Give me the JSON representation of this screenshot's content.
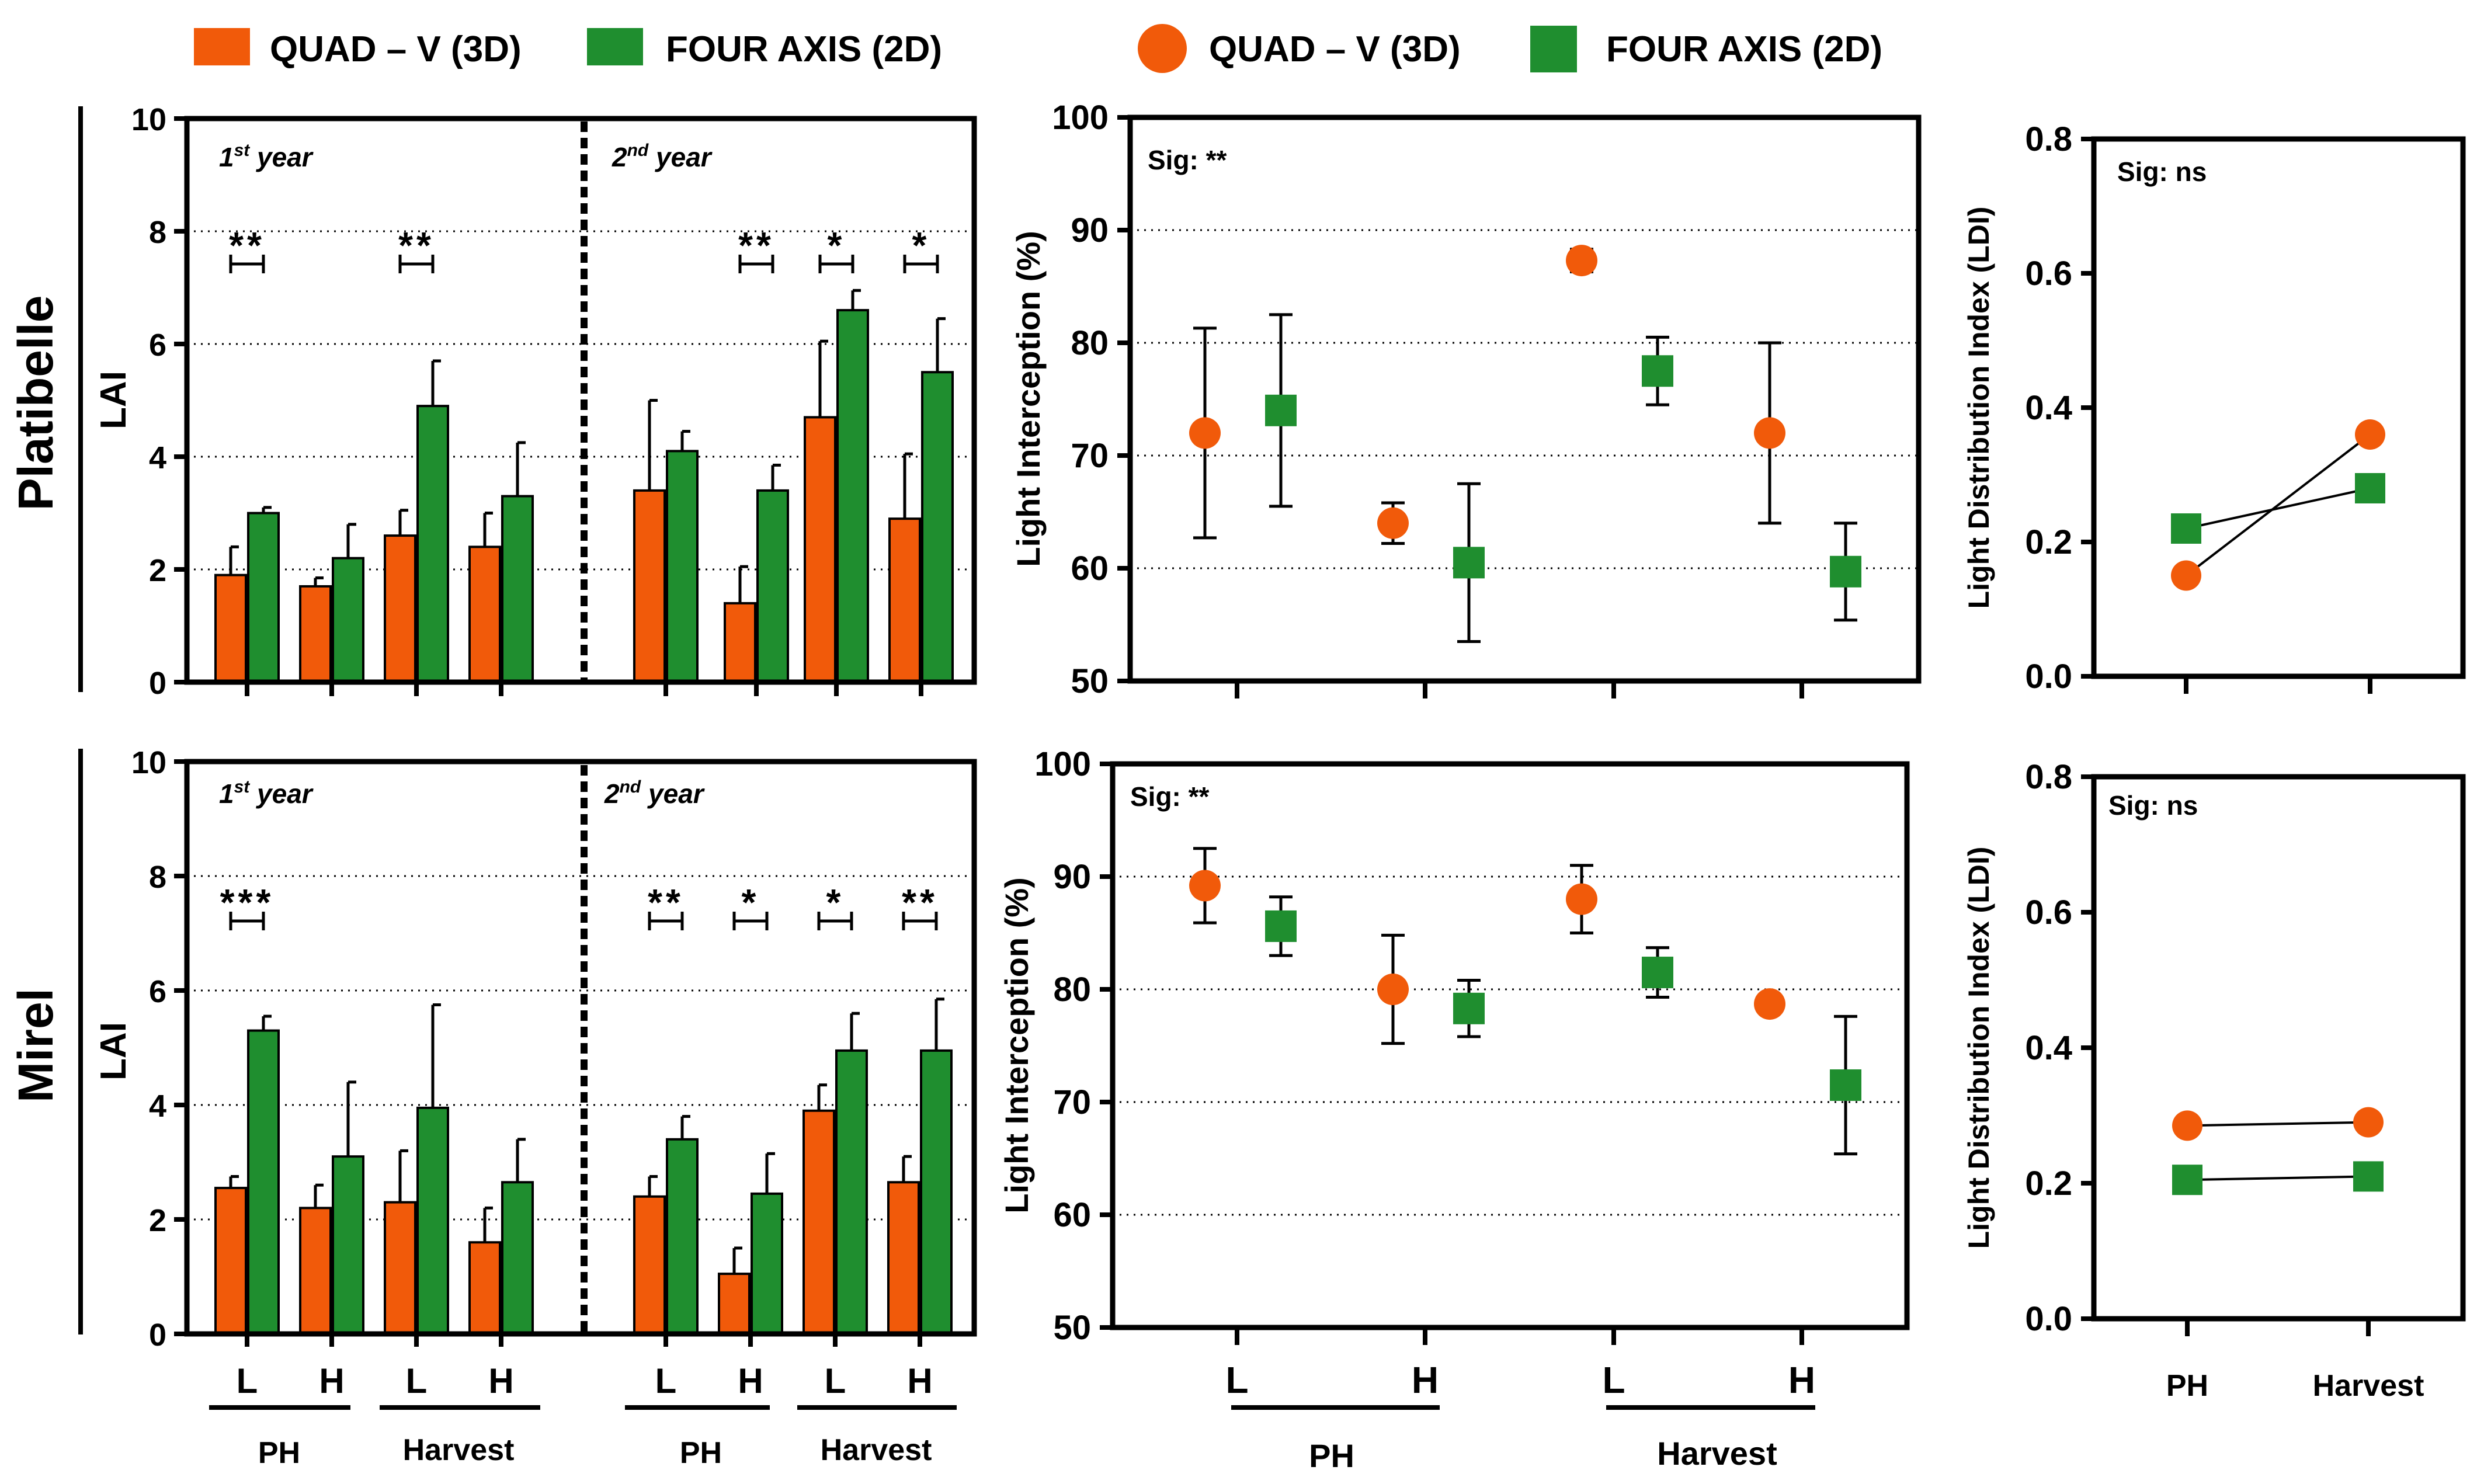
{
  "colors": {
    "quad": "#f15a0a",
    "four": "#1f8e2f"
  },
  "legend": {
    "bars": [
      "QUAD – V (3D)",
      "FOUR AXIS (2D)"
    ],
    "points": [
      "QUAD – V (3D)",
      "FOUR AXIS (2D)"
    ]
  },
  "rows": [
    {
      "label": "Platibelle",
      "year1_label": "1st year",
      "year2_label": "2nd year",
      "lai_ylabel": "LAI",
      "li_sig": "Sig: **",
      "ldi_sig": "Sig: ns"
    },
    {
      "label": "Mirel",
      "year1_label": "1st year",
      "year2_label": "2nd year",
      "lai_ylabel": "LAI",
      "li_sig": "Sig: **",
      "ldi_sig": "Sig: ns"
    }
  ],
  "bottom_labels": {
    "lai_groups": [
      "PH",
      "Harvest",
      "PH",
      "Harvest"
    ],
    "lai_ticks": [
      "L",
      "H",
      "L",
      "H",
      "L",
      "H",
      "L",
      "H"
    ],
    "li_groups": [
      "PH",
      "Harvest"
    ],
    "li_ticks": [
      "L",
      "H",
      "L",
      "H"
    ],
    "ldi_ticks": [
      "PH",
      "Harvest"
    ]
  },
  "chart_data": [
    {
      "id": "lai-platibelle",
      "type": "bar",
      "ylabel": "LAI",
      "ylim": [
        0,
        10
      ],
      "yticks": [
        0,
        2,
        4,
        6,
        8,
        10
      ],
      "grid": true,
      "categories": [
        "1st year PH L",
        "1st year PH H",
        "1st year Harvest L",
        "1st year Harvest H",
        "2nd year PH L",
        "2nd year PH H",
        "2nd year Harvest L",
        "2nd year Harvest H"
      ],
      "series": [
        {
          "name": "QUAD – V (3D)",
          "values": [
            1.9,
            1.7,
            2.6,
            2.4,
            3.4,
            1.4,
            4.7,
            2.9
          ],
          "errors": [
            0.5,
            0.15,
            0.45,
            0.6,
            1.6,
            0.65,
            1.35,
            1.15
          ]
        },
        {
          "name": "FOUR AXIS (2D)",
          "values": [
            3.0,
            2.2,
            4.9,
            3.3,
            4.1,
            3.4,
            6.6,
            5.5
          ],
          "errors": [
            0.1,
            0.6,
            0.8,
            0.95,
            0.35,
            0.45,
            0.35,
            0.95
          ]
        }
      ],
      "significance": [
        {
          "category": 0,
          "label": "**"
        },
        {
          "category": 2,
          "label": "**"
        },
        {
          "category": 5,
          "label": "**"
        },
        {
          "category": 6,
          "label": "*"
        },
        {
          "category": 7,
          "label": "*"
        }
      ]
    },
    {
      "id": "li-platibelle",
      "type": "scatter",
      "ylabel": "Light Interception (%)",
      "ylim": [
        50,
        100
      ],
      "yticks": [
        50,
        60,
        70,
        80,
        90,
        100
      ],
      "grid": true,
      "categories": [
        "PH L",
        "PH H",
        "Harvest L",
        "Harvest H"
      ],
      "series": [
        {
          "name": "QUAD – V (3D)",
          "values": [
            72,
            64,
            87.3,
            72
          ],
          "errors": [
            9.3,
            1.8,
            1.0,
            8.0
          ]
        },
        {
          "name": "FOUR AXIS (2D)",
          "values": [
            74,
            60.5,
            77.5,
            59.7
          ],
          "errors": [
            8.5,
            7.0,
            3.0,
            4.3
          ]
        }
      ],
      "significance_label": "Sig: **"
    },
    {
      "id": "ldi-platibelle",
      "type": "line",
      "ylabel": "Light Distribution Index (LDI)",
      "ylim": [
        0,
        0.8
      ],
      "yticks": [
        0.0,
        0.2,
        0.4,
        0.6,
        0.8
      ],
      "categories": [
        "PH",
        "Harvest"
      ],
      "series": [
        {
          "name": "QUAD – V (3D)",
          "values": [
            0.15,
            0.36
          ]
        },
        {
          "name": "FOUR AXIS (2D)",
          "values": [
            0.22,
            0.28
          ]
        }
      ],
      "significance_label": "Sig: ns"
    },
    {
      "id": "lai-mirel",
      "type": "bar",
      "ylabel": "LAI",
      "ylim": [
        0,
        10
      ],
      "yticks": [
        0,
        2,
        4,
        6,
        8,
        10
      ],
      "grid": true,
      "categories": [
        "1st year PH L",
        "1st year PH H",
        "1st year Harvest L",
        "1st year Harvest H",
        "2nd year PH L",
        "2nd year PH H",
        "2nd year Harvest L",
        "2nd year Harvest H"
      ],
      "series": [
        {
          "name": "QUAD – V (3D)",
          "values": [
            2.55,
            2.2,
            2.3,
            1.6,
            2.4,
            1.05,
            3.9,
            2.65
          ],
          "errors": [
            0.2,
            0.4,
            0.9,
            0.6,
            0.35,
            0.45,
            0.45,
            0.45
          ]
        },
        {
          "name": "FOUR AXIS (2D)",
          "values": [
            5.3,
            3.1,
            3.95,
            2.65,
            3.4,
            2.45,
            4.95,
            4.95
          ],
          "errors": [
            0.25,
            1.3,
            1.8,
            0.75,
            0.4,
            0.7,
            0.65,
            0.9
          ]
        }
      ],
      "significance": [
        {
          "category": 0,
          "label": "***"
        },
        {
          "category": 4,
          "label": "**"
        },
        {
          "category": 5,
          "label": "*"
        },
        {
          "category": 6,
          "label": "*"
        },
        {
          "category": 7,
          "label": "**"
        }
      ]
    },
    {
      "id": "li-mirel",
      "type": "scatter",
      "ylabel": "Light Interception (%)",
      "ylim": [
        50,
        100
      ],
      "yticks": [
        50,
        60,
        70,
        80,
        90,
        100
      ],
      "grid": true,
      "categories": [
        "PH L",
        "PH H",
        "Harvest L",
        "Harvest H"
      ],
      "series": [
        {
          "name": "QUAD – V (3D)",
          "values": [
            89.2,
            80,
            88,
            78.7
          ],
          "errors": [
            3.3,
            4.8,
            3.0,
            0
          ]
        },
        {
          "name": "FOUR AXIS (2D)",
          "values": [
            85.6,
            78.3,
            81.5,
            71.5
          ],
          "errors": [
            2.6,
            2.5,
            2.2,
            6.1
          ]
        }
      ],
      "significance_label": "Sig: **"
    },
    {
      "id": "ldi-mirel",
      "type": "line",
      "ylabel": "Light Distribution Index (LDI)",
      "ylim": [
        0,
        0.8
      ],
      "yticks": [
        0.0,
        0.2,
        0.4,
        0.6,
        0.8
      ],
      "categories": [
        "PH",
        "Harvest"
      ],
      "series": [
        {
          "name": "QUAD – V (3D)",
          "values": [
            0.285,
            0.29
          ]
        },
        {
          "name": "FOUR AXIS (2D)",
          "values": [
            0.205,
            0.21
          ]
        }
      ],
      "significance_label": "Sig: ns"
    }
  ]
}
